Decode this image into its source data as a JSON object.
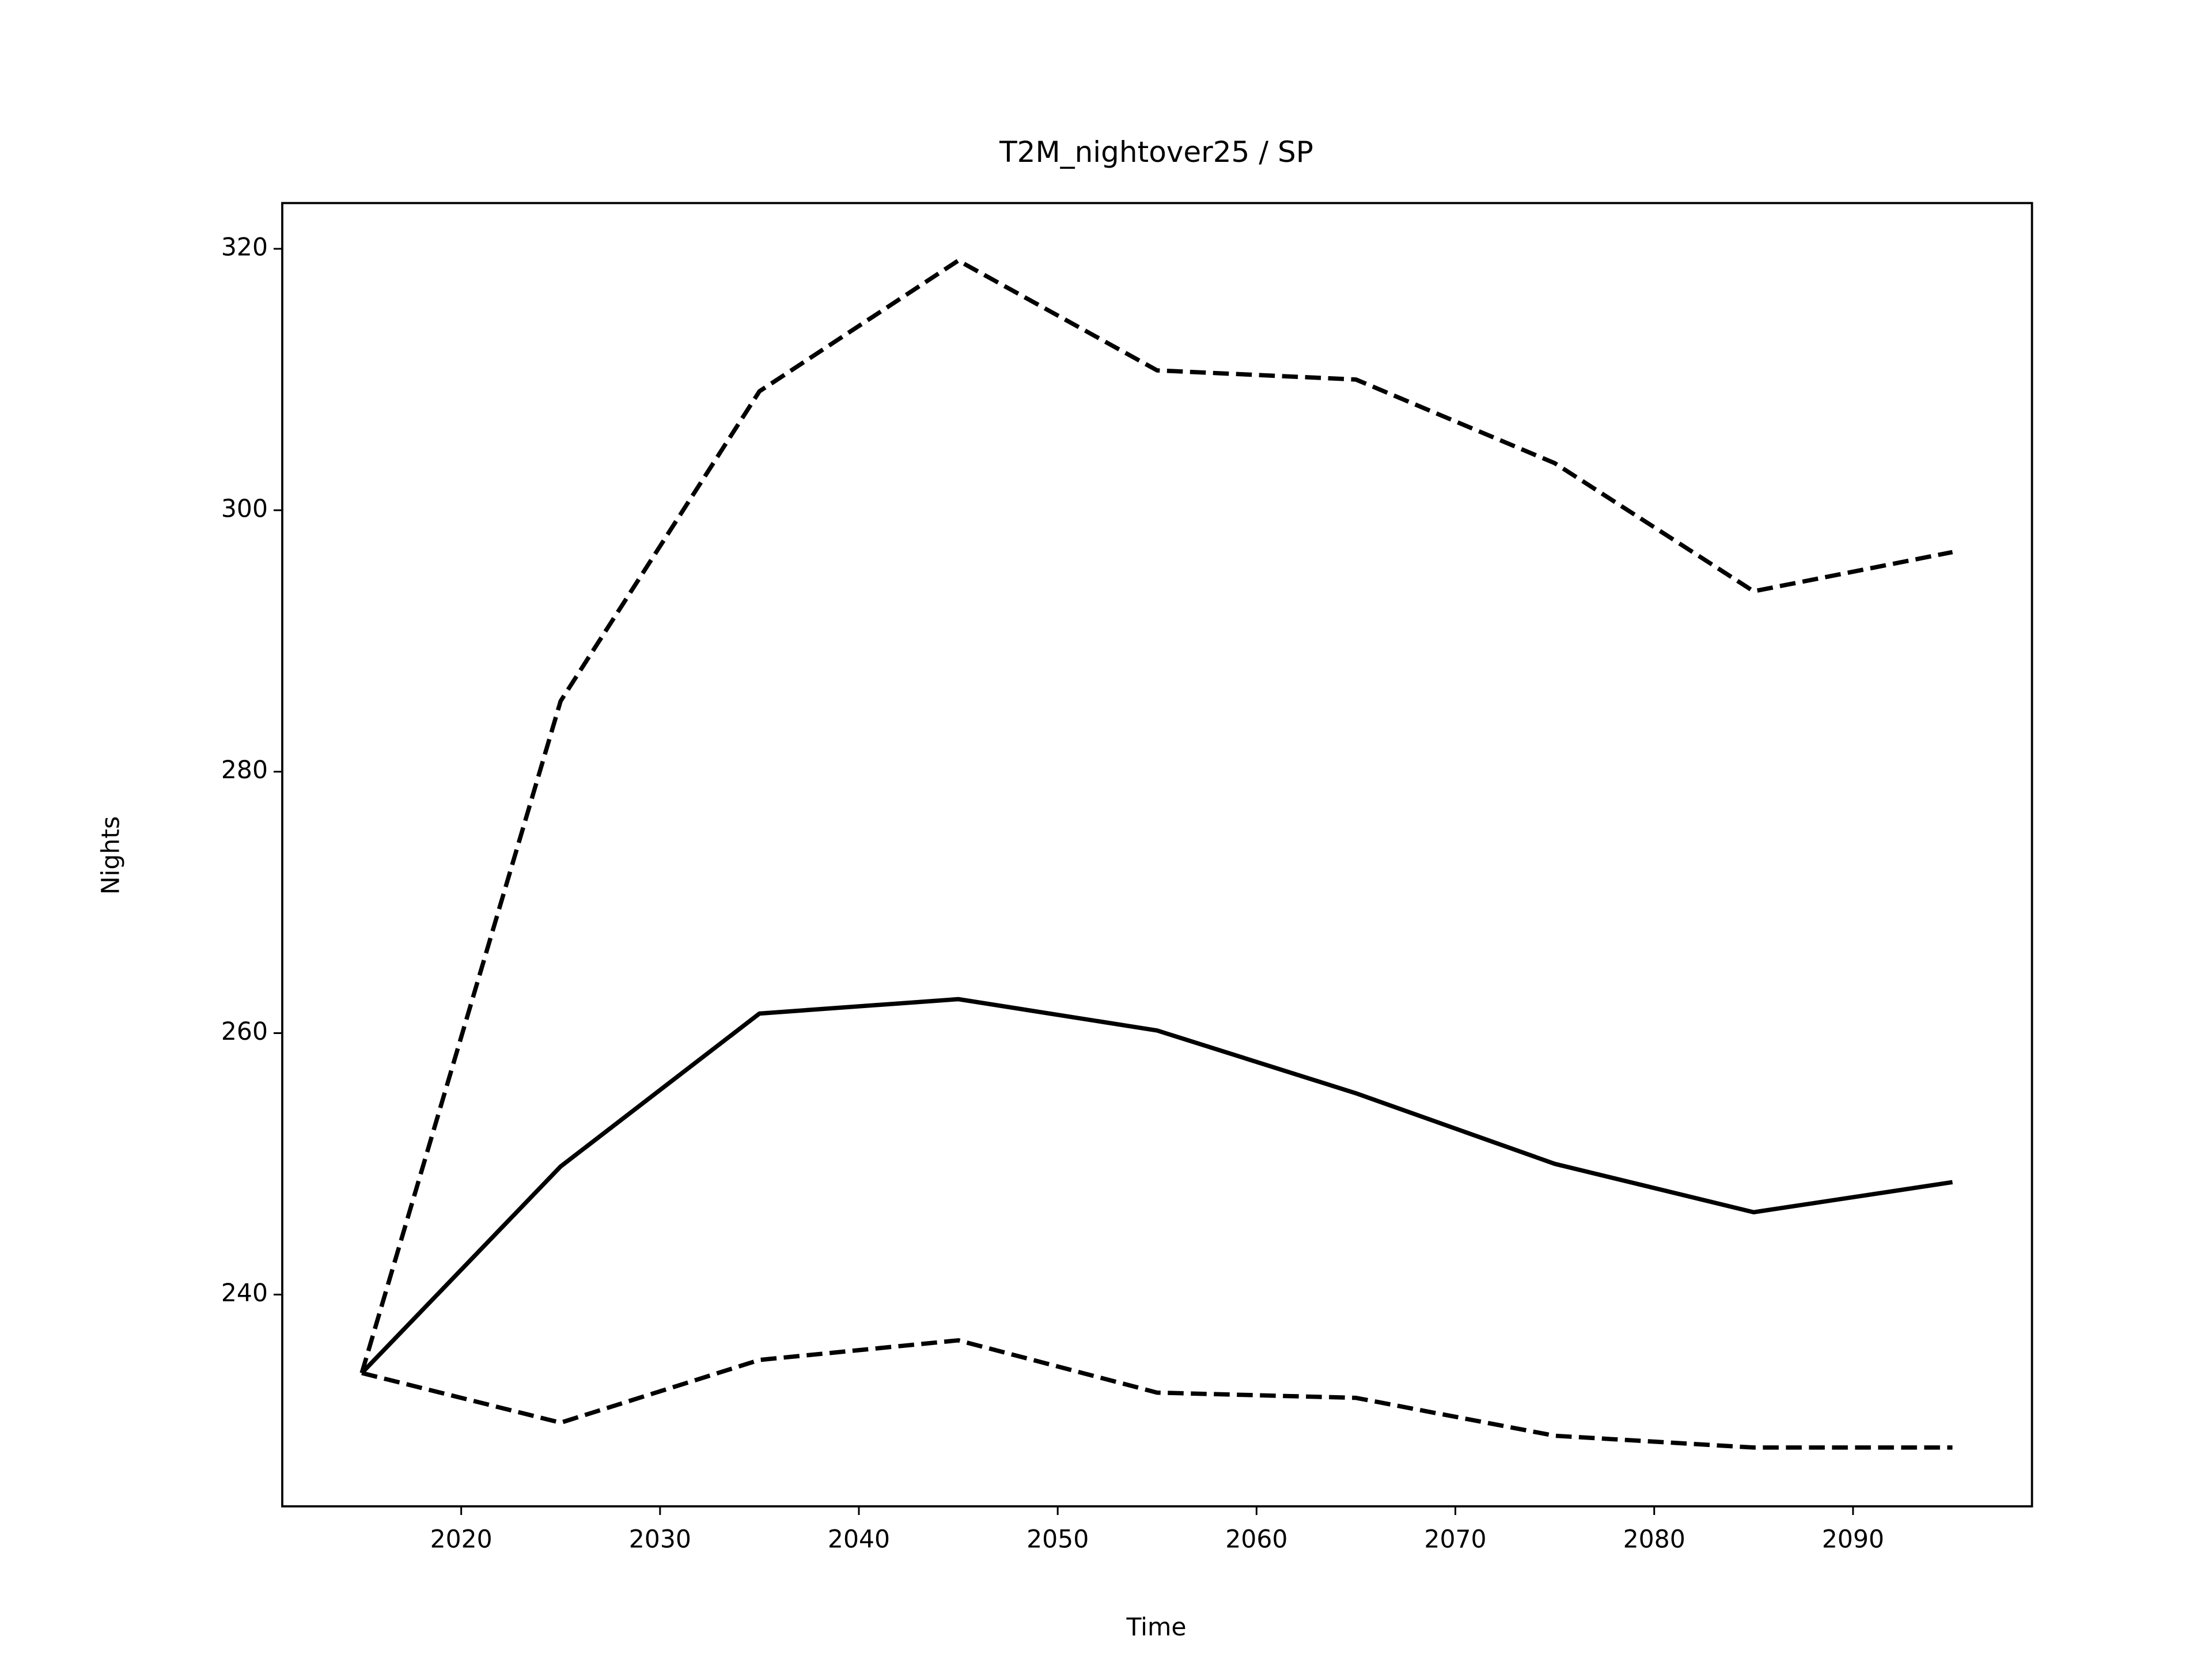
{
  "chart_data": {
    "type": "line",
    "title": "T2M_nightover25 / SP",
    "x_label": "Time",
    "y_label": "Nights",
    "x": [
      2015,
      2025,
      2035,
      2045,
      2055,
      2065,
      2075,
      2085,
      2095
    ],
    "series": [
      {
        "color": "#000000",
        "style": "solid",
        "values": [
          234.0,
          249.8,
          261.5,
          262.6,
          260.2,
          255.4,
          250.0,
          246.3,
          248.6
        ]
      },
      {
        "color": "#000000",
        "style": "dashed",
        "values": [
          234.0,
          285.4,
          309.1,
          319.1,
          310.7,
          310.0,
          303.6,
          293.8,
          296.8
        ]
      },
      {
        "color": "#000000",
        "style": "dashed",
        "values": [
          234.0,
          230.2,
          235.0,
          236.5,
          232.5,
          232.1,
          229.2,
          228.3,
          228.3
        ]
      }
    ],
    "xlim": [
      2011,
      2099
    ],
    "ylim": [
      223.8,
      323.5
    ],
    "xticks": [
      2020,
      2030,
      2040,
      2050,
      2060,
      2070,
      2080,
      2090
    ],
    "yticks": [
      240,
      260,
      280,
      300,
      320
    ],
    "grid": false
  }
}
